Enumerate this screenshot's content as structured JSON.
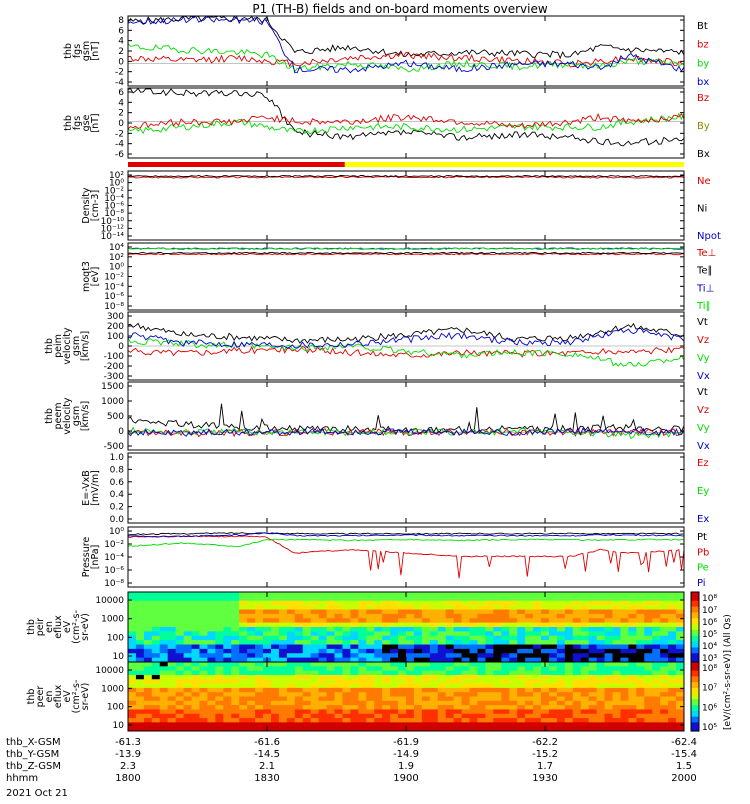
{
  "title": "P1 (TH-B) fields and on-board moments overview",
  "date_label": "2021 Oct 21",
  "colors": {
    "black": "#000000",
    "red": "#e00000",
    "green": "#00dd00",
    "blue": "#0000cc",
    "yellow": "#ffff00",
    "darkred": "#a00000",
    "olive": "#8a8a00"
  },
  "footer": {
    "rows": [
      {
        "label": "thb_X-GSM",
        "values": [
          "-61.3",
          "-61.6",
          "-61.9",
          "-62.2",
          "-62.4"
        ]
      },
      {
        "label": "thb_Y-GSM",
        "values": [
          "-13.9",
          "-14.5",
          "-14.9",
          "-15.2",
          "-15.4"
        ]
      },
      {
        "label": "thb_Z-GSM",
        "values": [
          "2.3",
          "2.1",
          "1.9",
          "1.7",
          "1.5"
        ]
      },
      {
        "label": "hhmm",
        "values": [
          "1800",
          "1830",
          "1900",
          "1930",
          "2000"
        ]
      }
    ]
  },
  "chart_data": [
    {
      "type": "line",
      "id": "fgs",
      "ylabel": [
        "thb",
        "fgs",
        "gsm",
        "[nT]"
      ],
      "yticks": [
        "8",
        "6",
        "4",
        "2",
        "0",
        "-2",
        "-4"
      ],
      "ylim": [
        -4,
        8.5
      ],
      "legend": [
        {
          "name": "Bt",
          "color": "black"
        },
        {
          "name": "bz",
          "color": "red"
        },
        {
          "name": "by",
          "color": "green"
        },
        {
          "name": "bx",
          "color": "blue"
        }
      ],
      "x": [
        0,
        0.1,
        0.2,
        0.25,
        0.3,
        0.4,
        0.5,
        0.6,
        0.7,
        0.8,
        0.85,
        0.9,
        1.0
      ],
      "series": [
        {
          "name": "Bt",
          "color": "black",
          "values": [
            7.5,
            8,
            8,
            7.8,
            2,
            3,
            1.5,
            2,
            1.8,
            1.5,
            3,
            2.5,
            2
          ]
        },
        {
          "name": "bz",
          "color": "red",
          "values": [
            1,
            0.5,
            1,
            0.5,
            0,
            1,
            1.5,
            1,
            0.5,
            0,
            0.5,
            1,
            0
          ]
        },
        {
          "name": "by",
          "color": "green",
          "values": [
            3,
            2.5,
            2,
            1.5,
            -1,
            0,
            -1,
            0,
            -0.5,
            0,
            -0.5,
            0.5,
            0
          ]
        },
        {
          "name": "bx",
          "color": "blue",
          "values": [
            7.5,
            7.8,
            7.8,
            7.5,
            -1,
            -1,
            0,
            -1,
            0,
            0,
            -1,
            1.5,
            -1
          ]
        }
      ]
    },
    {
      "type": "line",
      "id": "fgs-gse",
      "ylabel": [
        "thb",
        "fgs",
        "gse",
        "[nT]"
      ],
      "yticks": [
        "6",
        "4",
        "2",
        "0",
        "-2",
        "-4",
        "-6"
      ],
      "ylim": [
        -7,
        6.5
      ],
      "legend": [
        {
          "name": "Bz",
          "color": "red"
        },
        {
          "name": "By",
          "color": "olive"
        },
        {
          "name": "Bx",
          "color": "black"
        }
      ],
      "x": [
        0,
        0.1,
        0.2,
        0.25,
        0.3,
        0.4,
        0.5,
        0.6,
        0.7,
        0.8,
        0.85,
        0.9,
        1.0
      ],
      "series": [
        {
          "name": "Bx",
          "color": "black",
          "values": [
            6,
            5.5,
            5.5,
            5,
            -2,
            -3,
            -2,
            -3,
            -2.5,
            -3,
            -4,
            -4,
            -3.5
          ]
        },
        {
          "name": "By",
          "color": "green",
          "values": [
            -2,
            -1,
            0,
            -1,
            -2,
            -1,
            -1,
            -1.5,
            -1,
            -1,
            -1,
            0,
            1
          ]
        },
        {
          "name": "Bz",
          "color": "red",
          "values": [
            -1,
            0,
            0,
            1,
            0,
            0,
            1,
            0,
            -1,
            0,
            1,
            0,
            1
          ]
        }
      ]
    },
    {
      "type": "line",
      "id": "density",
      "log": true,
      "ylabel": [
        "Density",
        "[cm-3]"
      ],
      "yticks": [
        "10²",
        "10⁰",
        "10⁻²",
        "10⁻⁴",
        "10⁻⁶",
        "10⁻⁸",
        "10⁻¹⁰",
        "10⁻¹²",
        "10⁻¹⁴"
      ],
      "ylim": [
        -14,
        2
      ],
      "legend": [
        {
          "name": "Ne",
          "color": "red"
        },
        {
          "name": "Ni",
          "color": "black"
        },
        {
          "name": "Npot",
          "color": "blue"
        }
      ],
      "x": [
        0,
        0.5,
        1.0
      ],
      "series": [
        {
          "name": "Ne",
          "color": "red",
          "values": [
            0.5,
            0.6,
            0.5
          ]
        },
        {
          "name": "Ni",
          "color": "black",
          "values": [
            0.8,
            0.8,
            0.8
          ]
        }
      ]
    },
    {
      "type": "line",
      "id": "temperature",
      "log": true,
      "ylabel": [
        "moqt3",
        "[eV]"
      ],
      "yticks": [
        "10⁴",
        "10²",
        "10⁰",
        "10⁻²",
        "10⁻⁴",
        "10⁻⁶",
        "10⁻⁸"
      ],
      "ylim": [
        -8,
        4
      ],
      "legend": [
        {
          "name": "Te⊥",
          "color": "red"
        },
        {
          "name": "Te∥",
          "color": "black"
        },
        {
          "name": "Ti⊥",
          "color": "blue"
        },
        {
          "name": "Ti∥",
          "color": "green"
        }
      ],
      "x": [
        0,
        0.5,
        1.0
      ],
      "series": [
        {
          "name": "Te⊥",
          "color": "red",
          "values": [
            2,
            2,
            2
          ]
        },
        {
          "name": "Te∥",
          "color": "black",
          "values": [
            2.2,
            2.2,
            2.2
          ]
        },
        {
          "name": "Ti⊥",
          "color": "blue",
          "values": [
            3,
            3,
            3
          ]
        },
        {
          "name": "Ti∥",
          "color": "green",
          "values": [
            3,
            3,
            3
          ]
        }
      ]
    },
    {
      "type": "line",
      "id": "peim-velocity",
      "ylabel": [
        "thb",
        "peim",
        "velocity",
        "gsm",
        "[km/s]"
      ],
      "yticks": [
        "300",
        "200",
        "100",
        "0",
        "-100",
        "-200",
        "-300"
      ],
      "ylim": [
        -310,
        310
      ],
      "legend": [
        {
          "name": "Vt",
          "color": "black"
        },
        {
          "name": "Vz",
          "color": "red"
        },
        {
          "name": "Vy",
          "color": "green"
        },
        {
          "name": "Vx",
          "color": "blue"
        }
      ],
      "x": [
        0,
        0.1,
        0.2,
        0.3,
        0.4,
        0.5,
        0.6,
        0.7,
        0.8,
        0.9,
        1.0
      ],
      "series": [
        {
          "name": "Vt",
          "color": "black",
          "values": [
            200,
            100,
            80,
            50,
            60,
            100,
            150,
            60,
            80,
            180,
            100
          ]
        },
        {
          "name": "Vz",
          "color": "red",
          "values": [
            -50,
            -60,
            -40,
            -30,
            -60,
            -80,
            -60,
            -70,
            -60,
            -50,
            -40
          ]
        },
        {
          "name": "Vy",
          "color": "green",
          "values": [
            50,
            20,
            0,
            -20,
            0,
            -50,
            -80,
            -60,
            -70,
            -180,
            -100
          ]
        },
        {
          "name": "Vx",
          "color": "blue",
          "values": [
            100,
            30,
            20,
            10,
            20,
            60,
            100,
            30,
            40,
            150,
            60
          ]
        }
      ]
    },
    {
      "type": "line",
      "id": "peem-velocity",
      "ylabel": [
        "thb",
        "peem",
        "velocity",
        "gsm",
        "[km/s]"
      ],
      "yticks": [
        "1500",
        "1000",
        "500",
        "0",
        "-500"
      ],
      "ylim": [
        -550,
        1550
      ],
      "legend": [
        {
          "name": "Vt",
          "color": "black"
        },
        {
          "name": "Vz",
          "color": "red"
        },
        {
          "name": "Vy",
          "color": "green"
        },
        {
          "name": "Vx",
          "color": "blue"
        }
      ],
      "x": [
        0,
        0.1,
        0.2,
        0.3,
        0.4,
        0.5,
        0.6,
        0.7,
        0.8,
        0.9,
        1.0
      ],
      "series": [
        {
          "name": "Vt",
          "color": "black",
          "values": [
            400,
            250,
            150,
            100,
            100,
            60,
            80,
            100,
            100,
            150,
            120
          ]
        },
        {
          "name": "Vz",
          "color": "red",
          "values": [
            0,
            -50,
            -20,
            0,
            0,
            -20,
            0,
            0,
            -20,
            0,
            0
          ]
        },
        {
          "name": "Vy",
          "color": "green",
          "values": [
            50,
            0,
            20,
            0,
            0,
            0,
            0,
            20,
            0,
            -100,
            -20
          ]
        },
        {
          "name": "Vx",
          "color": "blue",
          "values": [
            0,
            -20,
            0,
            0,
            10,
            0,
            0,
            0,
            20,
            0,
            0
          ]
        }
      ]
    },
    {
      "type": "line",
      "id": "efield",
      "ylabel": [
        "E=-VxB",
        "[mV/m]"
      ],
      "yticks": [
        "1.0",
        "0.8",
        "0.6",
        "0.4",
        "0.2",
        "0.0"
      ],
      "ylim": [
        0,
        1
      ],
      "legend": [
        {
          "name": "Ez",
          "color": "red"
        },
        {
          "name": "Ey",
          "color": "green"
        },
        {
          "name": "Ex",
          "color": "blue"
        }
      ],
      "x": [],
      "series": []
    },
    {
      "type": "line",
      "id": "pressure",
      "log": true,
      "ylabel": [
        "Pressure",
        "[nPa]"
      ],
      "yticks": [
        "10⁰",
        "10⁻²",
        "10⁻⁴",
        "10⁻⁶",
        "10⁻⁸"
      ],
      "ylim": [
        -8.6,
        0.4
      ],
      "legend": [
        {
          "name": "Pt",
          "color": "black"
        },
        {
          "name": "Pb",
          "color": "red"
        },
        {
          "name": "Pe",
          "color": "green"
        },
        {
          "name": "Pi",
          "color": "blue"
        }
      ],
      "x": [
        0,
        0.1,
        0.2,
        0.25,
        0.3,
        0.4,
        0.5,
        0.6,
        0.7,
        0.8,
        0.85,
        0.9,
        1.0
      ],
      "series": [
        {
          "name": "Pt",
          "color": "black",
          "values": [
            -0.7,
            -0.6,
            -0.5,
            -0.5,
            -0.6,
            -0.6,
            -0.6,
            -0.6,
            -0.6,
            -0.6,
            -0.6,
            -0.6,
            -0.6
          ]
        },
        {
          "name": "Pb",
          "color": "red",
          "values": [
            -1.1,
            -1,
            -1,
            -1.1,
            -3.5,
            -3,
            -3.5,
            -4,
            -4,
            -4,
            -3,
            -3.5,
            -3
          ]
        },
        {
          "name": "Pe",
          "color": "green",
          "values": [
            -2.5,
            -2,
            -2.5,
            -1.5,
            -1.5,
            -1.6,
            -1.5,
            -1.6,
            -1.5,
            -1.5,
            -1.6,
            -1.5,
            -1.5
          ]
        },
        {
          "name": "Pi",
          "color": "blue",
          "values": [
            -1,
            -1,
            -0.8,
            -0.5,
            -0.9,
            -0.9,
            -0.8,
            -0.9,
            -0.9,
            -0.9,
            -0.8,
            -0.8,
            -0.9
          ]
        }
      ]
    },
    {
      "type": "heatmap",
      "id": "peir-en-eflux",
      "ylabel": [
        "thb",
        "peir",
        "en",
        "eflux",
        "eV",
        "(cm²-s-",
        "sr-eV)"
      ],
      "yticks": [
        "10000",
        "1000",
        "100",
        "10"
      ],
      "colorbar": {
        "ticks": [
          "10⁸",
          "10⁷",
          "10⁶",
          "10⁵",
          "10⁴",
          "10³"
        ],
        "label": "[eV/(cm²-s-sr-eV)]"
      }
    },
    {
      "type": "heatmap",
      "id": "peer-en-eflux",
      "ylabel": [
        "thb",
        "peer",
        "en",
        "eflux",
        "eV",
        "(cm²-s-",
        "sr-eV)"
      ],
      "yticks": [
        "10000",
        "1000",
        "100",
        "10"
      ],
      "colorbar": {
        "ticks": [
          "10⁸",
          "10⁷",
          "10⁶",
          "10⁵"
        ],
        "label": "[eV/(cm²-s-sr-eV)]"
      }
    }
  ],
  "mode_bar": {
    "segments": [
      {
        "color": "red",
        "from": 0,
        "to": 0.39
      },
      {
        "color": "yellow",
        "from": 0.39,
        "to": 1.0
      }
    ]
  },
  "colorbar_title": "[eV/(cm²-s-sr-eV)] (All Qs)"
}
